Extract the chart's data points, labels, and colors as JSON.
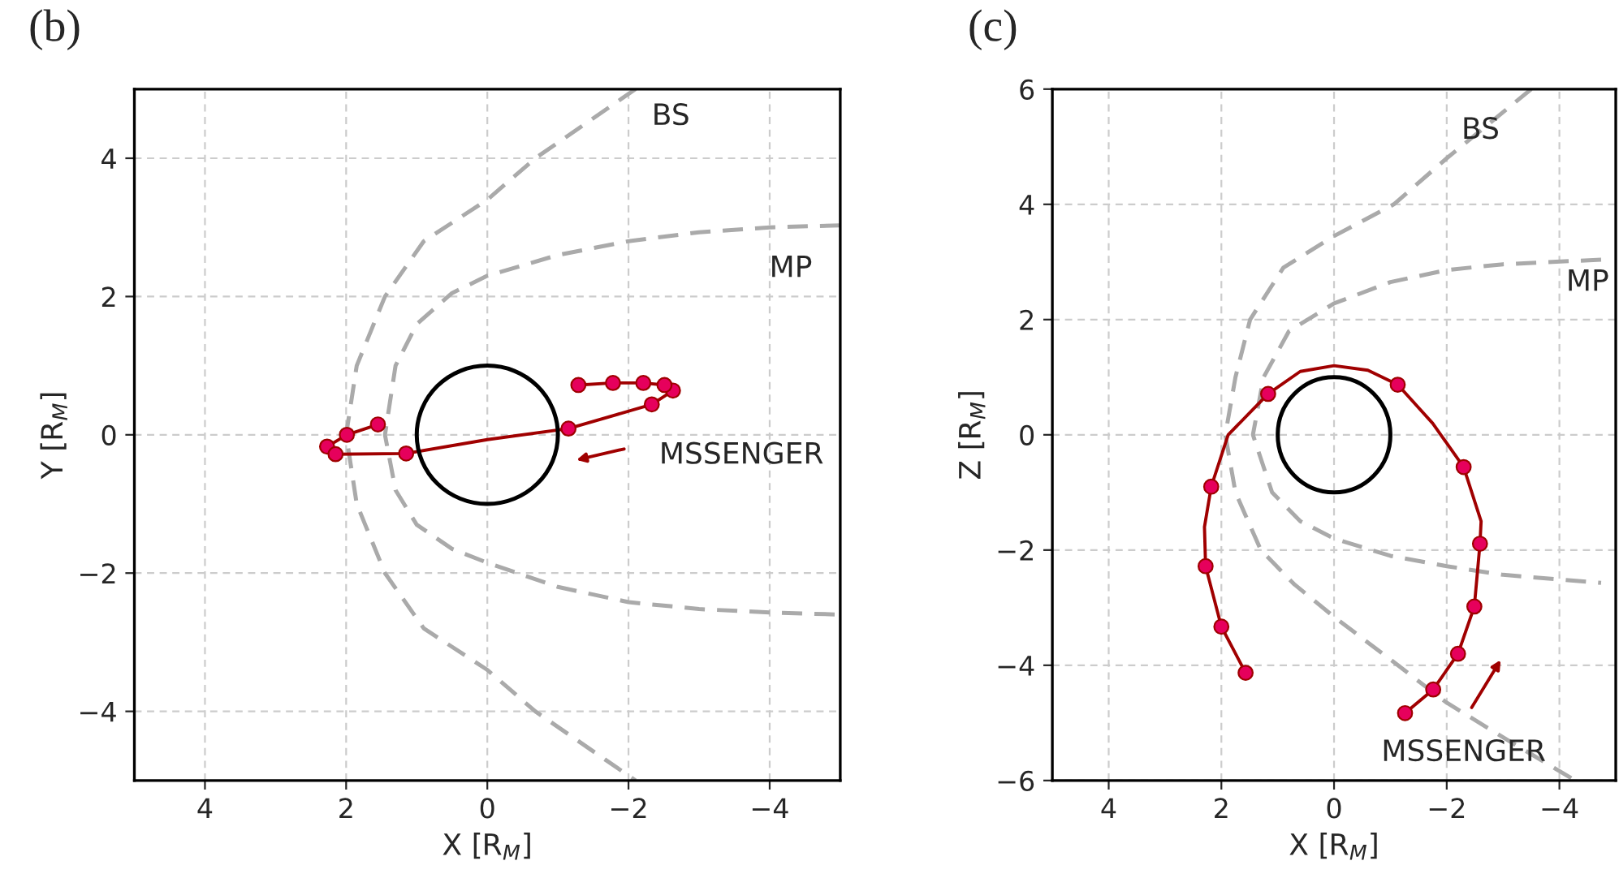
{
  "chart_data": [
    {
      "type": "line",
      "title": "(b)",
      "xlabel": "X [R$_{M}$]",
      "ylabel": "Y [R$_{M}$]",
      "xlim": [
        5,
        -5
      ],
      "ylim": [
        -5,
        5
      ],
      "grid": true,
      "xticks": [
        4,
        2,
        0,
        -2,
        -4
      ],
      "yticks": [
        -4,
        -2,
        0,
        2,
        4
      ],
      "series": [
        {
          "color": "#aaaaaa",
          "line_style": "dashed",
          "marker": "none",
          "x": [
            -2.1,
            -0.68,
            0,
            0.9,
            1.45,
            1.85,
            2.0,
            1.85,
            1.45,
            0.9,
            0,
            -0.68,
            -2.1
          ],
          "values": [
            5,
            4,
            3.4,
            2.8,
            2,
            1,
            0,
            -1,
            -2,
            -2.8,
            -3.4,
            -4,
            -5
          ]
        },
        {
          "color": "#aaaaaa",
          "line_style": "dashed",
          "marker": "none",
          "x": [
            -5,
            -4,
            -3,
            -2,
            -1,
            0,
            0.5,
            1.0,
            1.3,
            1.45,
            1.3,
            1.0,
            0.5,
            0,
            -1,
            -2,
            -3,
            -4,
            -5
          ],
          "values": [
            3.03,
            3.0,
            2.93,
            2.8,
            2.6,
            2.3,
            2.05,
            1.6,
            1.0,
            0,
            -0.8,
            -1.3,
            -1.65,
            -1.85,
            -2.2,
            -2.42,
            -2.52,
            -2.57,
            -2.6
          ]
        },
        {
          "color": "#a00000",
          "line_style": "solid",
          "marker": "none",
          "x": [
            1.55,
            1.99,
            2.27,
            2.15,
            1.15,
            0,
            -1.15,
            -2.33,
            -2.63,
            -2.51,
            -2.21,
            -1.78,
            -1.29
          ],
          "values": [
            0.15,
            0.0,
            -0.17,
            -0.28,
            -0.27,
            -0.07,
            0.09,
            0.44,
            0.64,
            0.72,
            0.75,
            0.75,
            0.72
          ]
        },
        {
          "type": "scatter",
          "color": "#e6005c",
          "marker": "circle",
          "x": [
            1.55,
            1.99,
            2.27,
            2.15,
            1.15,
            -1.15,
            -2.33,
            -2.63,
            -2.51,
            -2.21,
            -1.78,
            -1.29
          ],
          "values": [
            0.15,
            0.0,
            -0.17,
            -0.28,
            -0.27,
            0.09,
            0.44,
            0.64,
            0.72,
            0.75,
            0.75,
            0.72
          ]
        }
      ],
      "annotations": [
        "BS",
        "MP",
        "MSSENGER"
      ]
    },
    {
      "type": "line",
      "title": "(c)",
      "xlabel": "X [R$_{M}$]",
      "ylabel": "Z [R$_{M}$]",
      "xlim": [
        5,
        -5
      ],
      "ylim": [
        -6,
        6
      ],
      "grid": true,
      "xticks": [
        4,
        2,
        0,
        -2,
        -4
      ],
      "yticks": [
        -6,
        -4,
        -2,
        0,
        2,
        4,
        6
      ],
      "series": [
        {
          "color": "#aaaaaa",
          "line_style": "dashed",
          "marker": "none",
          "x": [
            -3.5,
            -2,
            -1.06,
            0,
            0.9,
            1.49,
            1.75,
            1.93,
            1.75,
            1.3,
            0.7,
            0,
            -1,
            -2,
            -3,
            -4.28
          ],
          "values": [
            6,
            4.8,
            4,
            3.45,
            2.9,
            2,
            1,
            0,
            -1,
            -2,
            -2.6,
            -3.16,
            -3.9,
            -4.65,
            -5.25,
            -6
          ]
        },
        {
          "color": "#aaaaaa",
          "line_style": "dashed",
          "marker": "none",
          "x": [
            -4.74,
            -3,
            -2,
            -1,
            0,
            0.8,
            1.25,
            1.44,
            1.1,
            0.6,
            0,
            -1,
            -2,
            -3,
            -4.74
          ],
          "values": [
            3.04,
            2.96,
            2.86,
            2.65,
            2.28,
            1.8,
            1,
            0,
            -1,
            -1.5,
            -1.8,
            -2.1,
            -2.28,
            -2.43,
            -2.57
          ]
        },
        {
          "color": "#a00000",
          "line_style": "solid",
          "marker": "none",
          "x": [
            1.57,
            2.0,
            2.28,
            2.3,
            2.18,
            1.88,
            1.17,
            0.6,
            0,
            -0.6,
            -1.13,
            -1.75,
            -2.3,
            -2.61,
            -2.59,
            -2.49,
            -2.2,
            -1.76,
            -1.26
          ],
          "values": [
            -4.13,
            -3.33,
            -2.28,
            -1.6,
            -0.9,
            0,
            0.71,
            1.1,
            1.2,
            1.12,
            0.87,
            0.2,
            -0.56,
            -1.5,
            -1.89,
            -2.98,
            -3.8,
            -4.42,
            -4.83
          ]
        },
        {
          "type": "scatter",
          "color": "#e6005c",
          "marker": "circle",
          "x": [
            1.57,
            2.0,
            2.28,
            2.18,
            1.17,
            -1.13,
            -2.3,
            -2.59,
            -2.49,
            -2.2,
            -1.76,
            -1.26
          ],
          "values": [
            -4.13,
            -3.33,
            -2.28,
            -0.9,
            0.71,
            0.87,
            -0.56,
            -1.89,
            -2.98,
            -3.8,
            -4.42,
            -4.83
          ]
        }
      ],
      "annotations": [
        "BS",
        "MP",
        "MSSENGER"
      ]
    }
  ]
}
